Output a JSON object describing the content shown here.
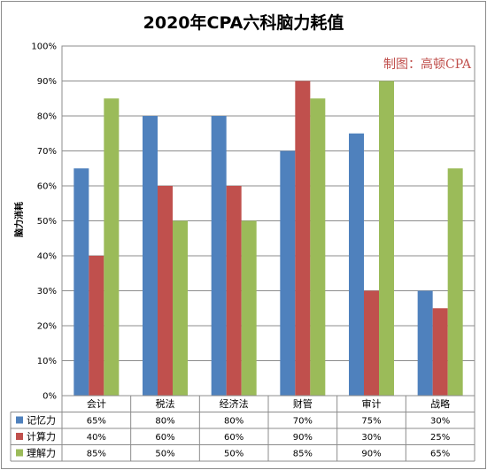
{
  "chart_data": {
    "type": "bar",
    "title": "2020年CPA六科脑力耗值",
    "watermark": "制图：高顿CPA",
    "xlabel": "",
    "ylabel": "脑力消耗",
    "ylim": [
      0,
      100
    ],
    "yticks": [
      "0%",
      "10%",
      "20%",
      "30%",
      "40%",
      "50%",
      "60%",
      "70%",
      "80%",
      "90%",
      "100%"
    ],
    "grid": true,
    "legend": "data-table",
    "categories": [
      "会计",
      "税法",
      "经济法",
      "财管",
      "审计",
      "战略"
    ],
    "series": [
      {
        "name": "记忆力",
        "color": "#4f81bd",
        "values": [
          65,
          80,
          80,
          70,
          75,
          30
        ],
        "labels": [
          "65%",
          "80%",
          "80%",
          "70%",
          "75%",
          "30%"
        ]
      },
      {
        "name": "计算力",
        "color": "#c0504d",
        "values": [
          40,
          60,
          60,
          90,
          30,
          25
        ],
        "labels": [
          "40%",
          "60%",
          "60%",
          "90%",
          "30%",
          "25%"
        ]
      },
      {
        "name": "理解力",
        "color": "#9bbb59",
        "values": [
          85,
          50,
          50,
          85,
          90,
          65
        ],
        "labels": [
          "85%",
          "50%",
          "50%",
          "85%",
          "90%",
          "65%"
        ]
      }
    ]
  }
}
